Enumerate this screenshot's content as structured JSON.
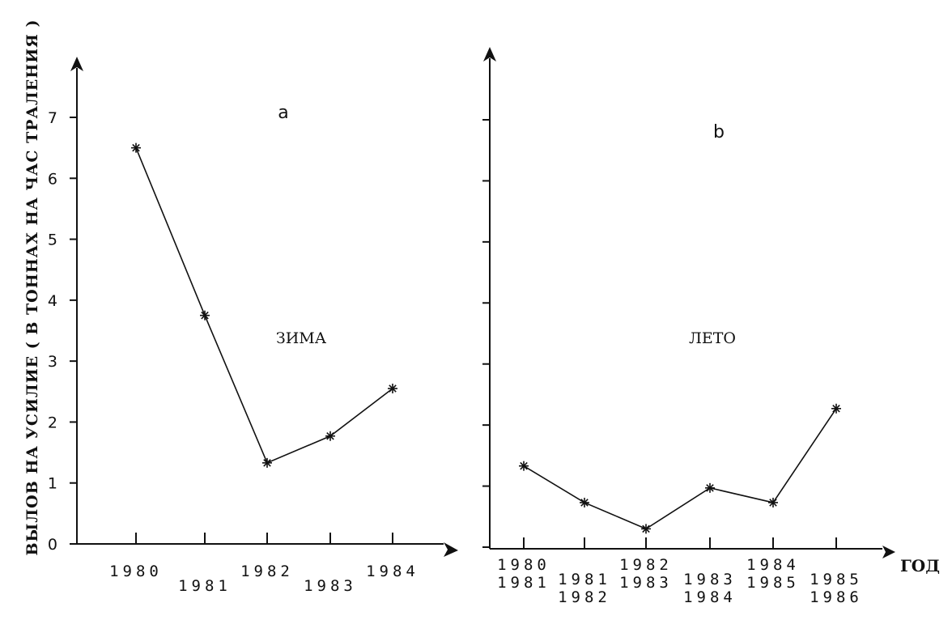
{
  "ylabel": "ВЫЛОВ НА УСИЛИЕ  ( В ТОННАХ НА ЧАС ТРАЛЕНИЯ )",
  "xlabel": "ГОД",
  "chart_data": [
    {
      "type": "line",
      "panel_label": "a",
      "annotation": "ЗИМА",
      "categories": [
        "1980",
        "1981",
        "1982",
        "1983",
        "1984"
      ],
      "values": [
        6.5,
        3.75,
        1.33,
        1.77,
        2.55
      ],
      "ylim": [
        0,
        7.5
      ],
      "yticks": [
        0,
        1,
        2,
        3,
        4,
        5,
        6,
        7
      ],
      "ytick_labels": [
        "0",
        "1",
        "2",
        "3",
        "4",
        "5",
        "6",
        "7"
      ],
      "grid": false
    },
    {
      "type": "line",
      "panel_label": "b",
      "annotation": "ЛЕТО",
      "categories": [
        "1980 1981",
        "1981 1982",
        "1982 1983",
        "1983 1984",
        "1984 1985",
        "1985 1986"
      ],
      "category_lines": [
        [
          "1980",
          "1981"
        ],
        [
          "1981",
          "1982"
        ],
        [
          "1982",
          "1983"
        ],
        [
          "1983",
          "1984"
        ],
        [
          "1984",
          "1985"
        ],
        [
          "1985",
          "1986"
        ]
      ],
      "values": [
        1.33,
        0.73,
        0.3,
        0.97,
        0.73,
        2.27
      ],
      "ylim": [
        0,
        7.5
      ],
      "yticks": [
        0,
        1,
        2,
        3,
        4,
        5,
        6,
        7
      ],
      "grid": false
    }
  ]
}
